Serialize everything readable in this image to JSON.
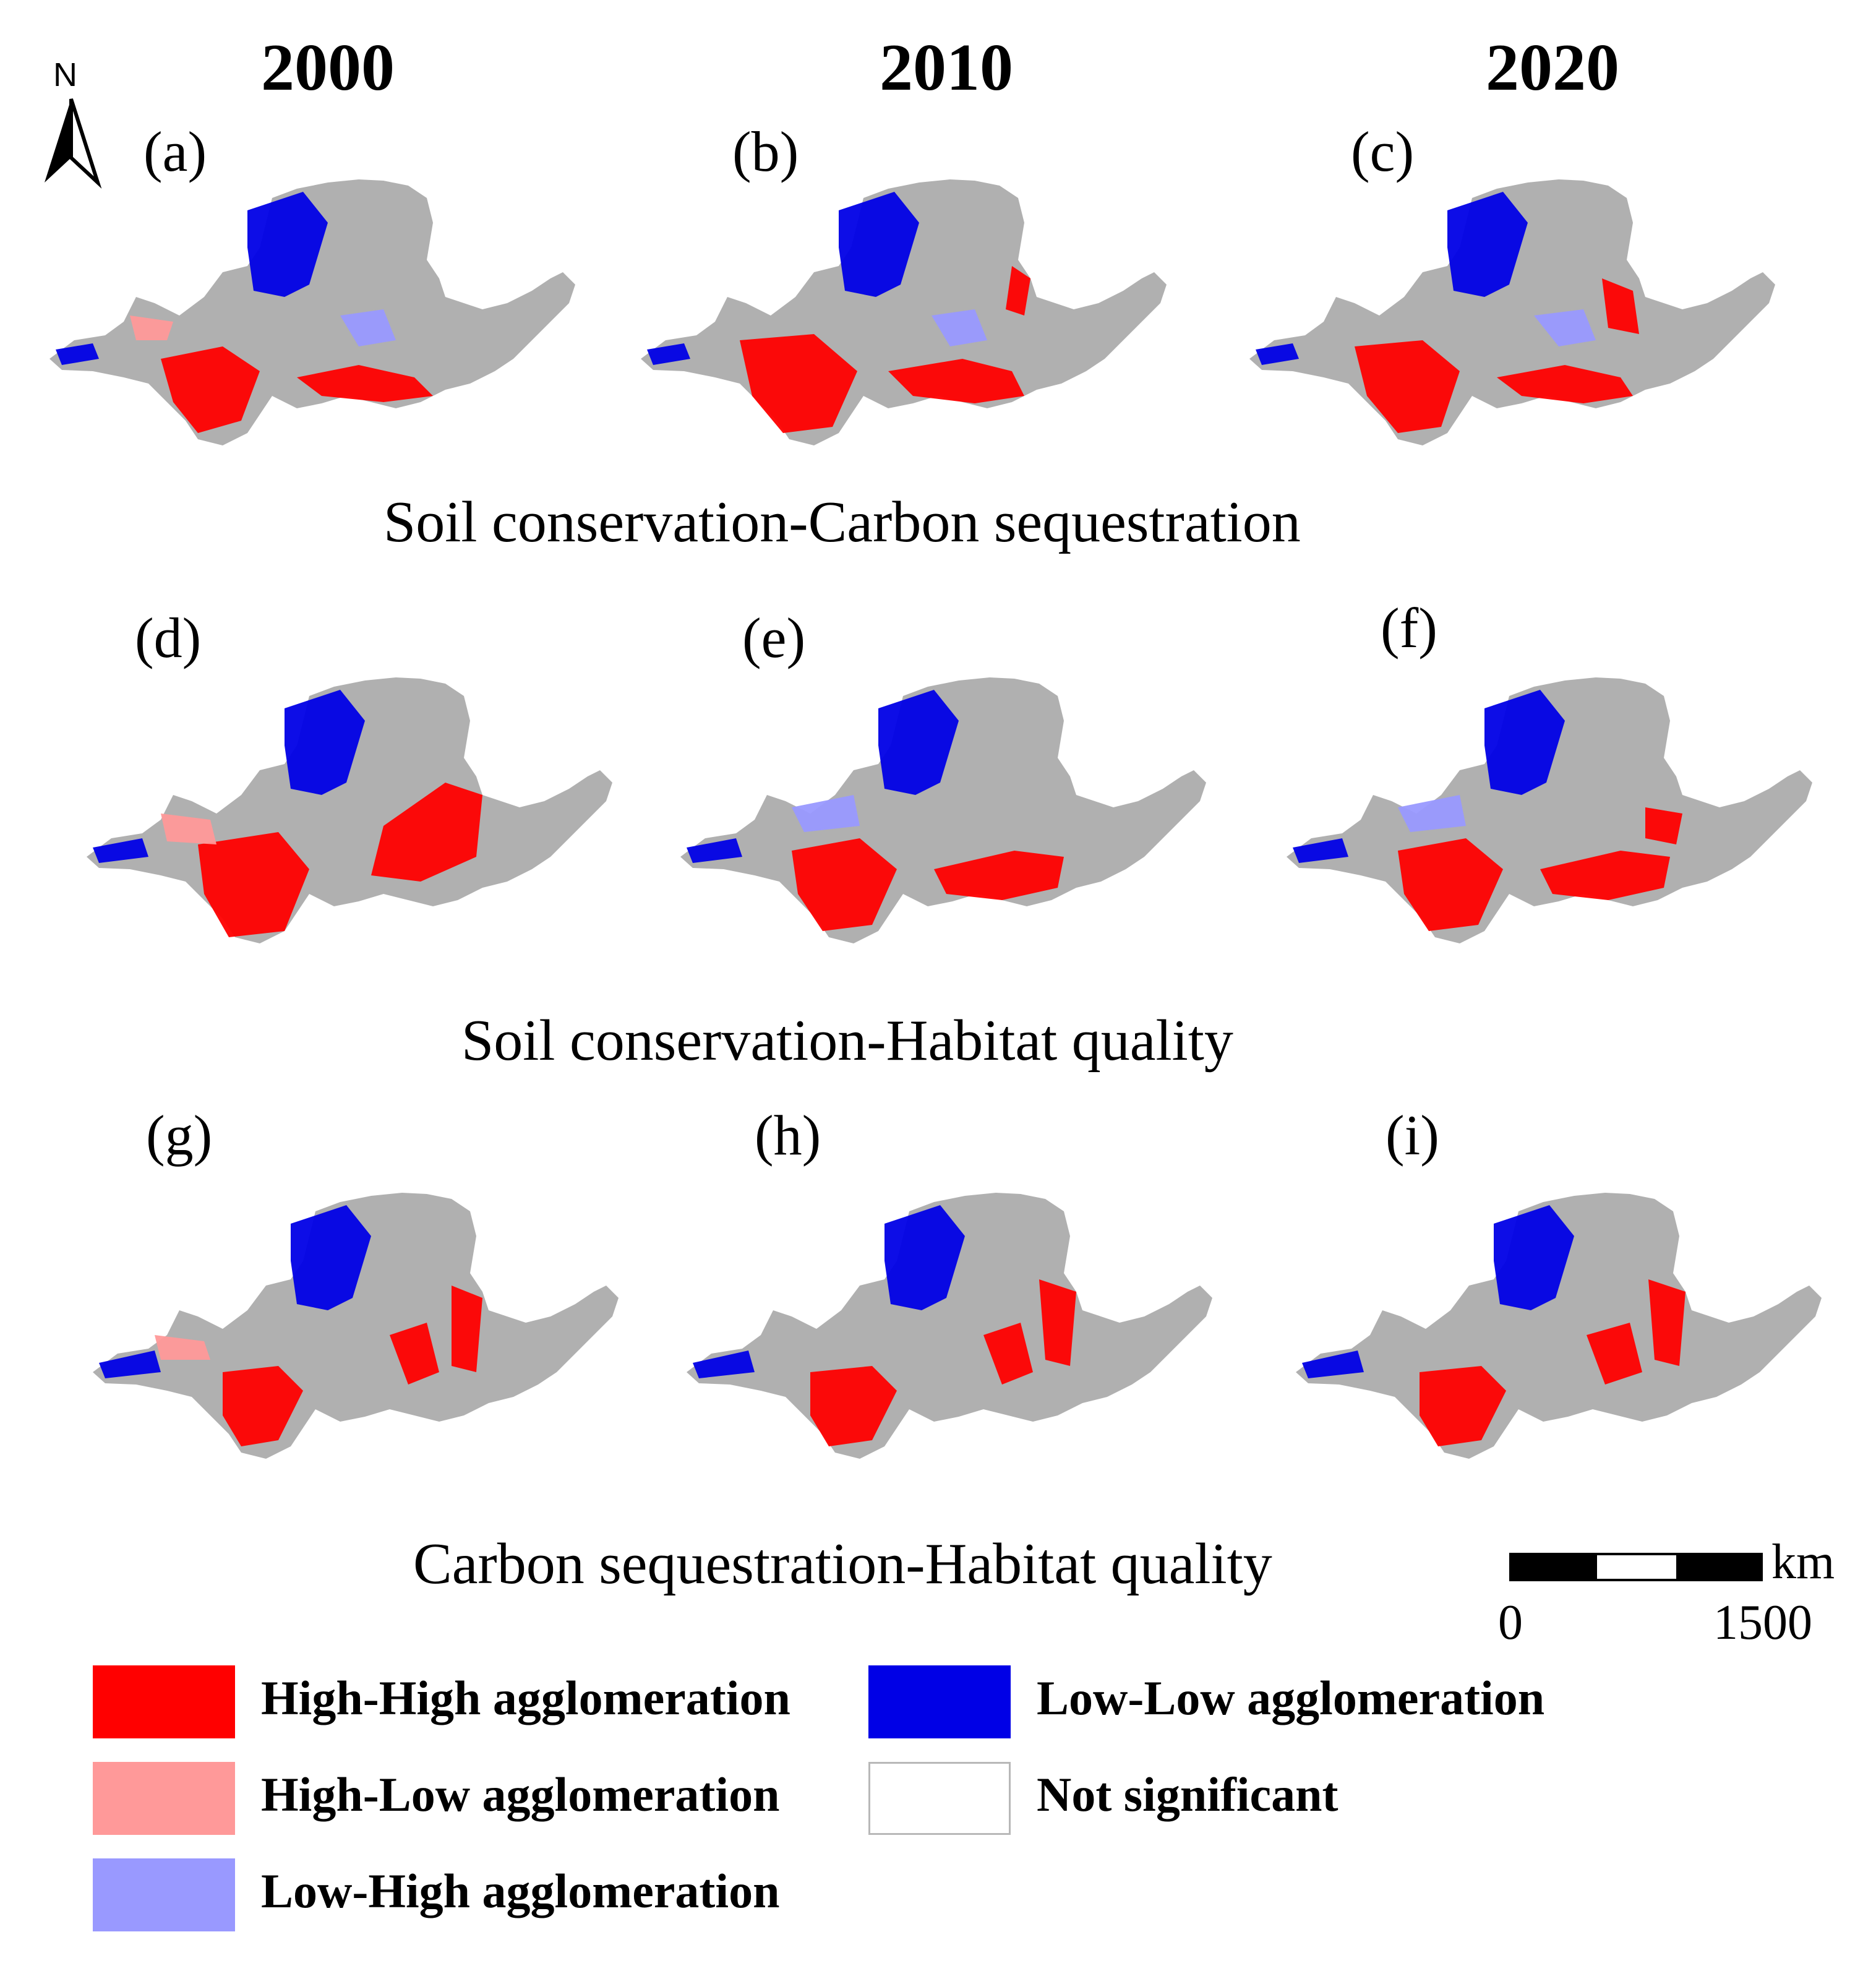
{
  "years": [
    "2000",
    "2010",
    "2020"
  ],
  "panels": [
    "(a)",
    "(b)",
    "(c)",
    "(d)",
    "(e)",
    "(f)",
    "(g)",
    "(h)",
    "(i)"
  ],
  "rows": [
    "Soil conservation-Carbon sequestration",
    "Soil conservation-Habitat quality",
    "Carbon sequestration-Habitat quality"
  ],
  "north_label": "N",
  "scale": {
    "unit": "km",
    "start": "0",
    "end": "1500"
  },
  "legend": [
    {
      "label": "High-High agglomeration",
      "color": "#ff0000"
    },
    {
      "label": "Low-Low agglomeration",
      "color": "#0000e6"
    },
    {
      "label": "High-Low agglomeration",
      "color": "#ff9999"
    },
    {
      "label": "Not significant",
      "color": "#ffffff"
    },
    {
      "label": "Low-High agglomeration",
      "color": "#9999ff"
    }
  ],
  "colors": {
    "not_significant_map": "#b0b0b0",
    "high_high": "#ff0000",
    "low_low": "#0000e6",
    "high_low": "#ff9999",
    "low_high": "#9999ff"
  }
}
